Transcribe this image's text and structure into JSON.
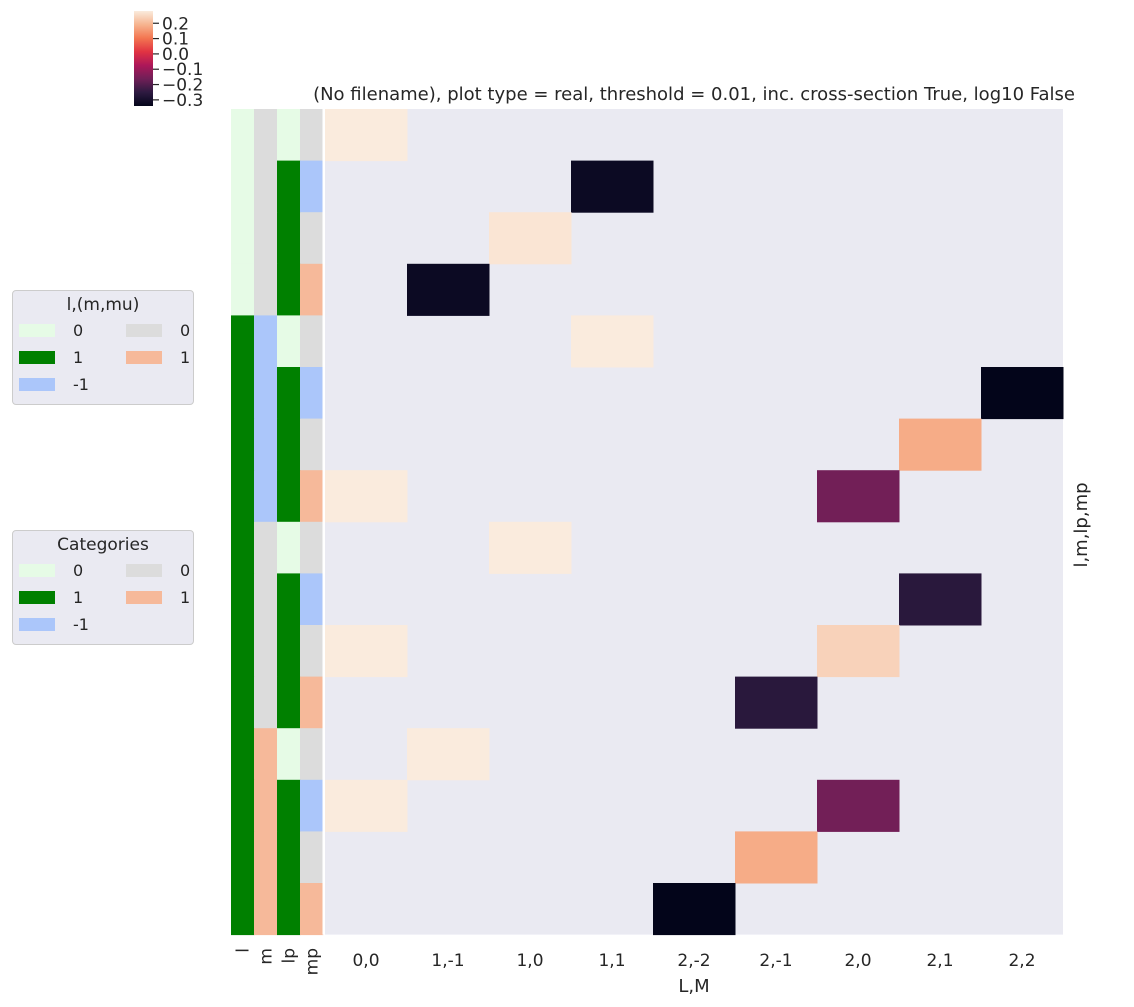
{
  "chart_data": {
    "type": "heatmap",
    "title": "(No filename), plot type = real, threshold = 0.01, inc. cross-section True, log10 False",
    "xlabel": "L,M",
    "ylabel": "l,m,lp,mp",
    "x_categories": [
      "0,0",
      "1,-1",
      "1,0",
      "1,1",
      "2,-2",
      "2,-1",
      "2,0",
      "2,1",
      "2,2"
    ],
    "row_annotations": {
      "columns": [
        "l",
        "m",
        "lp",
        "mp"
      ],
      "rows": [
        [
          0,
          0,
          0,
          0
        ],
        [
          0,
          0,
          1,
          -1
        ],
        [
          0,
          0,
          1,
          0
        ],
        [
          0,
          0,
          1,
          1
        ],
        [
          1,
          -1,
          0,
          0
        ],
        [
          1,
          -1,
          1,
          -1
        ],
        [
          1,
          -1,
          1,
          0
        ],
        [
          1,
          -1,
          1,
          1
        ],
        [
          1,
          0,
          0,
          0
        ],
        [
          1,
          0,
          1,
          -1
        ],
        [
          1,
          0,
          1,
          0
        ],
        [
          1,
          0,
          1,
          1
        ],
        [
          1,
          1,
          0,
          0
        ],
        [
          1,
          1,
          1,
          -1
        ],
        [
          1,
          1,
          1,
          0
        ],
        [
          1,
          1,
          1,
          1
        ]
      ]
    },
    "values": [
      [
        0.28,
        null,
        null,
        null,
        null,
        null,
        null,
        null,
        null
      ],
      [
        null,
        null,
        null,
        -0.32,
        null,
        null,
        null,
        null,
        null
      ],
      [
        null,
        null,
        0.27,
        null,
        null,
        null,
        null,
        null,
        null
      ],
      [
        null,
        -0.32,
        null,
        null,
        null,
        null,
        null,
        null,
        null
      ],
      [
        null,
        null,
        null,
        0.28,
        null,
        null,
        null,
        null,
        null
      ],
      [
        null,
        null,
        null,
        null,
        null,
        null,
        null,
        null,
        -0.34
      ],
      [
        null,
        null,
        null,
        null,
        null,
        null,
        null,
        0.18,
        null
      ],
      [
        0.28,
        null,
        null,
        null,
        null,
        null,
        -0.16,
        null,
        null
      ],
      [
        null,
        null,
        0.28,
        null,
        null,
        null,
        null,
        null,
        null
      ],
      [
        null,
        null,
        null,
        null,
        null,
        null,
        null,
        -0.26,
        null
      ],
      [
        0.28,
        null,
        null,
        null,
        null,
        null,
        0.24,
        null,
        null
      ],
      [
        null,
        null,
        null,
        null,
        null,
        -0.26,
        null,
        null,
        null
      ],
      [
        null,
        0.28,
        null,
        null,
        null,
        null,
        null,
        null,
        null
      ],
      [
        0.28,
        null,
        null,
        null,
        null,
        null,
        -0.16,
        null,
        null
      ],
      [
        null,
        null,
        null,
        null,
        null,
        0.18,
        null,
        null,
        null
      ],
      [
        null,
        null,
        null,
        null,
        -0.34,
        null,
        null,
        null,
        null
      ]
    ],
    "colorbar": {
      "ticks": [
        0.2,
        0.1,
        0.0,
        -0.1,
        -0.2,
        -0.3
      ],
      "tick_labels": [
        "0.2",
        "0.1",
        "0.0",
        "−0.1",
        "−0.2",
        "−0.3"
      ],
      "range": [
        -0.34,
        0.28
      ]
    },
    "colors": {
      "background": "#eaeaf2",
      "colormap": [
        "#03051a",
        "#2d1a40",
        "#701f57",
        "#ad1759",
        "#e13342",
        "#f37651",
        "#f6b48f",
        "#faebdd"
      ],
      "l_colors": {
        "0": "#e6fbe6",
        "1": "#008000",
        "-1": "#abc6fa"
      },
      "m_colors": {
        "0": "#dcdcdc",
        "1": "#f6b99a",
        "-1": "#abc6fa"
      }
    },
    "grid": false
  },
  "legends": [
    {
      "title": "l,(m,mu)",
      "col1": [
        {
          "label": "0",
          "color": "#e6fbe6"
        },
        {
          "label": "1",
          "color": "#008000"
        },
        {
          "label": "-1",
          "color": "#abc6fa"
        }
      ],
      "col2": [
        {
          "label": "0",
          "color": "#dcdcdc"
        },
        {
          "label": "1",
          "color": "#f6b99a"
        }
      ]
    },
    {
      "title": "Categories",
      "col1": [
        {
          "label": "0",
          "color": "#e6fbe6"
        },
        {
          "label": "1",
          "color": "#008000"
        },
        {
          "label": "-1",
          "color": "#abc6fa"
        }
      ],
      "col2": [
        {
          "label": "0",
          "color": "#dcdcdc"
        },
        {
          "label": "1",
          "color": "#f6b99a"
        }
      ]
    }
  ]
}
